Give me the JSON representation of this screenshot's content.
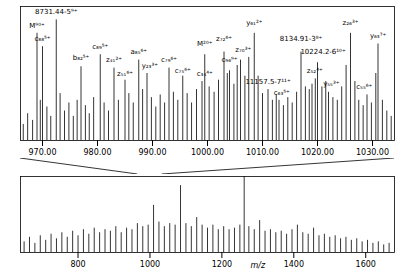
{
  "chart_data": [
    {
      "type": "line",
      "tick_labels": "x",
      "color": "#000000",
      "xlim": [
        966,
        1034
      ],
      "ylim": [
        0,
        100
      ],
      "xticks": [
        {
          "value": 970,
          "label": "970.00"
        },
        {
          "value": 980,
          "label": "980.00"
        },
        {
          "value": 990,
          "label": "990.00"
        },
        {
          "value": 1000,
          "label": "1000.00"
        },
        {
          "value": 1010,
          "label": "1010.00"
        },
        {
          "value": 1020,
          "label": "1020.00"
        },
        {
          "value": 1030,
          "label": "1030.00"
        }
      ],
      "x": [
        966.5,
        967.3,
        968.2,
        969,
        969.6,
        970,
        970.8,
        971.5,
        972.5,
        973.2,
        974,
        974.8,
        975.6,
        976.3,
        977,
        977.8,
        978.5,
        979.3,
        980.5,
        981.2,
        982,
        983,
        983.8,
        985,
        985.7,
        986.5,
        987.5,
        988.2,
        989,
        989.8,
        990.6,
        991.4,
        992.2,
        993,
        993.8,
        994.6,
        995.5,
        996.3,
        997.1,
        998,
        999,
        999.5,
        1000.3,
        1001.2,
        1002,
        1003,
        1003.6,
        1004,
        1004.8,
        1005.4,
        1006,
        1006.8,
        1007.5,
        1008.5,
        1009.2,
        1010,
        1011,
        1011.8,
        1012.5,
        1013,
        1013.8,
        1014.6,
        1015.4,
        1016.2,
        1017,
        1017.8,
        1018.5,
        1019,
        1019.6,
        1020,
        1020.8,
        1021.5,
        1022,
        1022.8,
        1023.6,
        1024.4,
        1025.2,
        1026,
        1026.8,
        1027.5,
        1028.3,
        1029,
        1029.8,
        1030.6,
        1031,
        1031.8,
        1032.6,
        1033.4
      ],
      "values": [
        12,
        20,
        15,
        80,
        30,
        70,
        25,
        18,
        90,
        35,
        22,
        28,
        18,
        30,
        55,
        26,
        20,
        32,
        64,
        28,
        22,
        54,
        30,
        45,
        35,
        28,
        60,
        38,
        50,
        32,
        25,
        34,
        28,
        54,
        36,
        30,
        48,
        35,
        28,
        38,
        44,
        64,
        40,
        36,
        45,
        66,
        50,
        52,
        42,
        56,
        60,
        48,
        62,
        80,
        48,
        35,
        38,
        30,
        34,
        30,
        26,
        32,
        28,
        36,
        66,
        40,
        38,
        42,
        46,
        58,
        40,
        44,
        36,
        32,
        30,
        40,
        56,
        80,
        44,
        30,
        26,
        34,
        28,
        50,
        72,
        30,
        22,
        18
      ],
      "annotations": [
        {
          "x": 969,
          "y": 86,
          "text": "M⁹⁰⁺"
        },
        {
          "x": 972.5,
          "y": 96,
          "text": "8731.44-5⁹⁺"
        },
        {
          "x": 970,
          "y": 76,
          "text": "c₈₈⁵⁺"
        },
        {
          "x": 977,
          "y": 62,
          "text": "b₈₂⁵⁺"
        },
        {
          "x": 980.5,
          "y": 70,
          "text": "c₈₉⁵⁺"
        },
        {
          "x": 983,
          "y": 60,
          "text": "z₄₁²⁺"
        },
        {
          "x": 987.5,
          "y": 66,
          "text": "a₈₅⁶⁺"
        },
        {
          "x": 985,
          "y": 50,
          "text": "z₅₁⁶⁺"
        },
        {
          "x": 989.5,
          "y": 56,
          "text": "y₂₃³⁺"
        },
        {
          "x": 993,
          "y": 60,
          "text": "c₇₉⁶⁺"
        },
        {
          "x": 995.5,
          "y": 52,
          "text": "c₇₅⁶⁺"
        },
        {
          "x": 999.5,
          "y": 72,
          "text": "M²⁰⁺"
        },
        {
          "x": 1003,
          "y": 76,
          "text": "z₇₂⁶⁺"
        },
        {
          "x": 999.5,
          "y": 50,
          "text": "c₃₄⁴⁺"
        },
        {
          "x": 1004,
          "y": 60,
          "text": "c₉₆⁹⁺"
        },
        {
          "x": 1006.5,
          "y": 68,
          "text": "z₇₀³⁺"
        },
        {
          "x": 1008.5,
          "y": 88,
          "text": "y₆₁²⁺"
        },
        {
          "x": 1011,
          "y": 44,
          "text": "11157.5-7¹¹⁺"
        },
        {
          "x": 1013.5,
          "y": 36,
          "text": "c₆₃⁵⁺"
        },
        {
          "x": 1017,
          "y": 76,
          "text": "8134.91-3⁸⁺"
        },
        {
          "x": 1021,
          "y": 66,
          "text": "10224.2-6¹⁰⁺"
        },
        {
          "x": 1019.5,
          "y": 52,
          "text": "z₅₂⁴⁺"
        },
        {
          "x": 1022.5,
          "y": 42,
          "text": "y₅₅³⁺"
        },
        {
          "x": 1026,
          "y": 88,
          "text": "z₂₆³⁺"
        },
        {
          "x": 1028.5,
          "y": 40,
          "text": "c₅₅⁶⁺"
        },
        {
          "x": 1031,
          "y": 78,
          "text": "y₆₃⁷⁺"
        }
      ]
    },
    {
      "type": "line",
      "tick_labels": "x",
      "color": "#000000",
      "xlabel": "m/z",
      "xlim": [
        640,
        1680
      ],
      "ylim": [
        0,
        100
      ],
      "xticks": [
        800,
        1000,
        1200,
        1400,
        1600
      ],
      "x": [
        650,
        665,
        680,
        695,
        710,
        725,
        740,
        755,
        770,
        785,
        800,
        815,
        830,
        845,
        860,
        875,
        890,
        905,
        920,
        935,
        950,
        965,
        980,
        995,
        1010,
        1025,
        1040,
        1055,
        1070,
        1085,
        1100,
        1115,
        1130,
        1145,
        1160,
        1175,
        1190,
        1205,
        1220,
        1235,
        1250,
        1262,
        1275,
        1290,
        1305,
        1320,
        1335,
        1350,
        1365,
        1380,
        1395,
        1410,
        1425,
        1440,
        1455,
        1470,
        1485,
        1500,
        1515,
        1530,
        1545,
        1560,
        1575,
        1590,
        1605,
        1620,
        1635,
        1650,
        1665
      ],
      "values": [
        14,
        20,
        12,
        22,
        16,
        24,
        18,
        26,
        20,
        28,
        22,
        30,
        24,
        32,
        26,
        30,
        28,
        34,
        26,
        32,
        30,
        38,
        34,
        36,
        62,
        40,
        34,
        38,
        36,
        88,
        38,
        34,
        46,
        36,
        32,
        36,
        30,
        34,
        30,
        32,
        36,
        100,
        34,
        30,
        42,
        28,
        30,
        26,
        28,
        24,
        30,
        36,
        26,
        24,
        32,
        22,
        24,
        20,
        22,
        18,
        20,
        16,
        18,
        14,
        16,
        12,
        14,
        10,
        12
      ]
    }
  ]
}
